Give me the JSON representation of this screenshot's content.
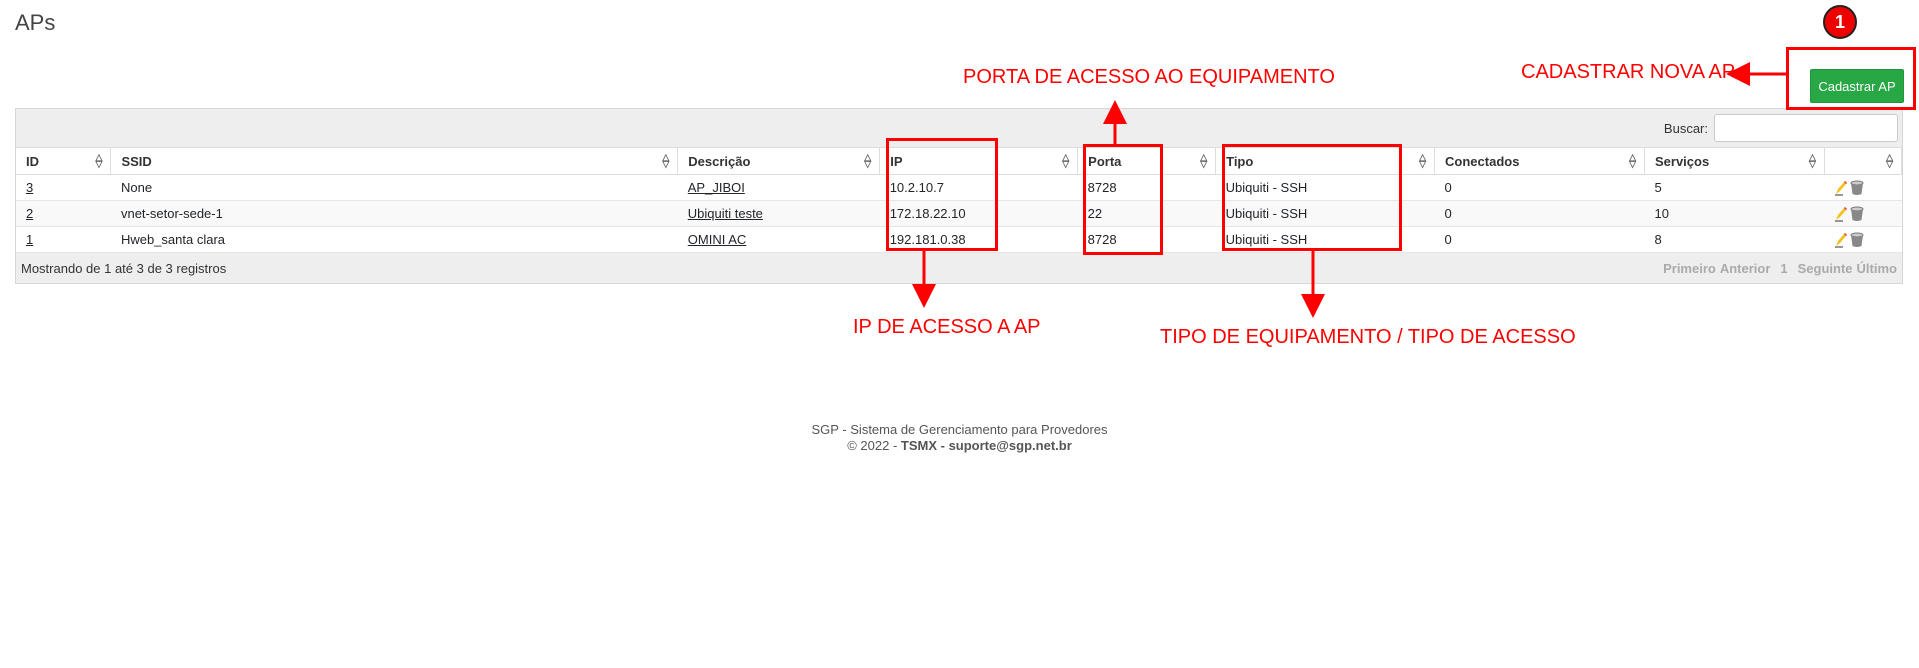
{
  "page": {
    "title": "APs"
  },
  "toolbar": {
    "add_label": "Cadastrar AP"
  },
  "search": {
    "label": "Buscar:",
    "value": ""
  },
  "table": {
    "columns": [
      "ID",
      "SSID",
      "Descrição",
      "IP",
      "Porta",
      "Tipo",
      "Conectados",
      "Serviços",
      ""
    ],
    "rows": [
      {
        "id": "3",
        "ssid": "None",
        "descricao": "AP_JIBOI",
        "ip": "10.2.10.7",
        "porta": "8728",
        "tipo": "Ubiquiti - SSH",
        "conectados": "0",
        "servicos": "5"
      },
      {
        "id": "2",
        "ssid": "vnet-setor-sede-1",
        "descricao": "Ubiquiti teste",
        "ip": "172.18.22.10",
        "porta": "22",
        "tipo": "Ubiquiti - SSH",
        "conectados": "0",
        "servicos": "10"
      },
      {
        "id": "1",
        "ssid": "Hweb_santa clara",
        "descricao": "OMINI AC",
        "ip": "192.181.0.38",
        "porta": "8728",
        "tipo": "Ubiquiti - SSH",
        "conectados": "0",
        "servicos": "8"
      }
    ],
    "info": "Mostrando de 1 até 3 de 3 registros",
    "pager": {
      "first": "Primeiro",
      "prev": "Anterior",
      "current": "1",
      "next": "Seguinte",
      "last": "Último"
    }
  },
  "annotations": {
    "step": "1",
    "add": "CADASTRAR NOVA AP",
    "porta": "PORTA DE ACESSO AO EQUIPAMENTO",
    "ip": "IP DE ACESSO A AP",
    "tipo": "TIPO DE EQUIPAMENTO / TIPO DE ACESSO",
    "color": "#ff0000"
  },
  "footer": {
    "line1": "SGP - Sistema de Gerenciamento para Provedores",
    "line2_prefix": "© 2022 - ",
    "line2_bold": "TSMX - suporte@sgp.net.br"
  },
  "colors": {
    "primary_button": "#28a745"
  }
}
